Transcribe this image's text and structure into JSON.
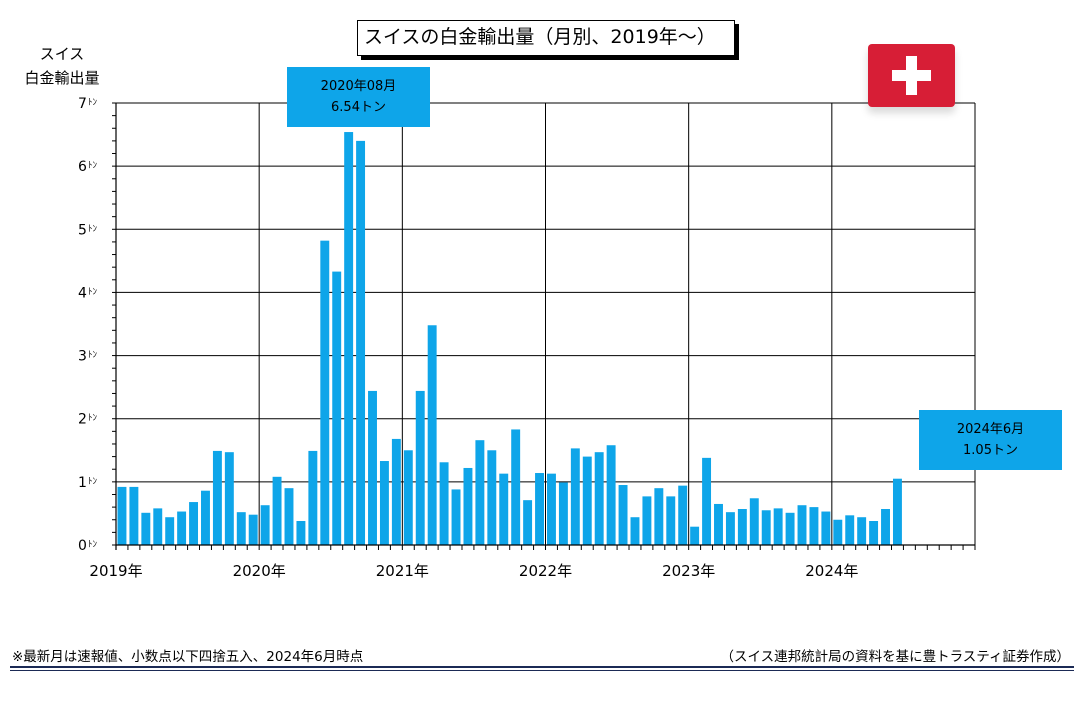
{
  "title": "スイスの白金輸出量（月別、2019年～）",
  "ylabel_line1": "スイス",
  "ylabel_line2": "白金輸出量",
  "callouts": {
    "peak_date": "2020年08月",
    "peak_value": "6.54トン",
    "latest_date": "2024年6月",
    "latest_value": "1.05トン"
  },
  "footnote": "※最新月は速報値、小数点以下四捨五入、2024年6月時点",
  "source": "（スイス連邦統計局の資料を基に豊トラスティ証券作成）",
  "colors": {
    "bar": "#0ea5e9",
    "callout": "#0ea5e9",
    "flag": "#d71e36",
    "rule": "#1b2a55"
  },
  "chart_data": {
    "type": "bar",
    "title": "スイスの白金輸出量（月別、2019年～）",
    "ylabel": "スイス 白金輸出量",
    "xlabel": "",
    "ylim": [
      0,
      7
    ],
    "yticks": [
      "0",
      "1",
      "2",
      "3",
      "4",
      "5",
      "6",
      "7"
    ],
    "y_unit": "ﾄﾝ",
    "x_range": [
      "2019-01",
      "2024-12"
    ],
    "year_labels": [
      "2019年",
      "2020年",
      "2021年",
      "2022年",
      "2023年",
      "2024年"
    ],
    "grid": true,
    "months": [
      "2019-01",
      "2019-02",
      "2019-03",
      "2019-04",
      "2019-05",
      "2019-06",
      "2019-07",
      "2019-08",
      "2019-09",
      "2019-10",
      "2019-11",
      "2019-12",
      "2020-01",
      "2020-02",
      "2020-03",
      "2020-04",
      "2020-05",
      "2020-06",
      "2020-07",
      "2020-08",
      "2020-09",
      "2020-10",
      "2020-11",
      "2020-12",
      "2021-01",
      "2021-02",
      "2021-03",
      "2021-04",
      "2021-05",
      "2021-06",
      "2021-07",
      "2021-08",
      "2021-09",
      "2021-10",
      "2021-11",
      "2021-12",
      "2022-01",
      "2022-02",
      "2022-03",
      "2022-04",
      "2022-05",
      "2022-06",
      "2022-07",
      "2022-08",
      "2022-09",
      "2022-10",
      "2022-11",
      "2022-12",
      "2023-01",
      "2023-02",
      "2023-03",
      "2023-04",
      "2023-05",
      "2023-06",
      "2023-07",
      "2023-08",
      "2023-09",
      "2023-10",
      "2023-11",
      "2023-12",
      "2024-01",
      "2024-02",
      "2024-03",
      "2024-04",
      "2024-05",
      "2024-06"
    ],
    "values": [
      0.92,
      0.92,
      0.51,
      0.58,
      0.44,
      0.53,
      0.68,
      0.86,
      1.49,
      1.47,
      0.52,
      0.48,
      0.63,
      1.08,
      0.9,
      0.38,
      1.49,
      4.82,
      4.33,
      6.54,
      6.4,
      2.44,
      1.33,
      1.68,
      1.5,
      2.44,
      3.48,
      1.31,
      0.88,
      1.22,
      1.66,
      1.5,
      1.13,
      1.83,
      0.71,
      1.14,
      1.13,
      0.99,
      1.53,
      1.4,
      1.47,
      1.58,
      0.95,
      0.44,
      0.77,
      0.9,
      0.77,
      0.94,
      0.29,
      1.38,
      0.65,
      0.52,
      0.57,
      0.74,
      0.55,
      0.58,
      0.51,
      0.63,
      0.6,
      0.53,
      0.4,
      0.47,
      0.44,
      0.38,
      0.57,
      1.05
    ]
  }
}
